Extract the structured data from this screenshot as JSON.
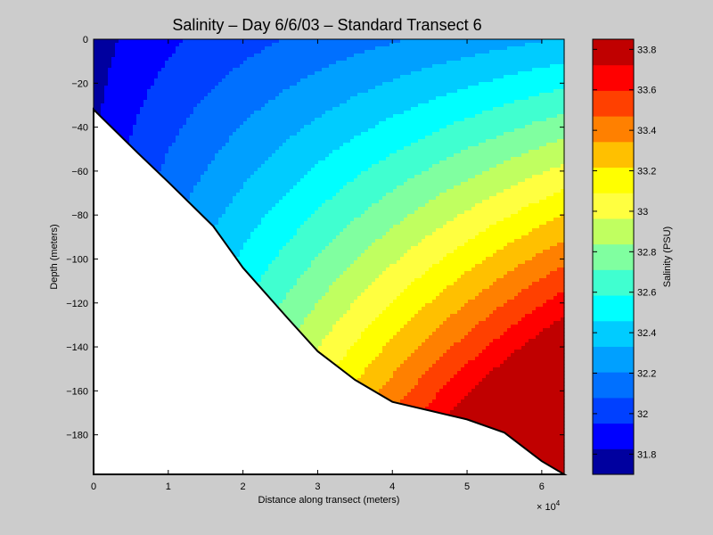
{
  "chart_data": {
    "type": "heatmap",
    "title": "Salinity – Day 6/6/03 – Standard Transect 6",
    "xlabel": "Distance along transect (meters)",
    "ylabel": "Depth (meters)",
    "x_multiplier_label": "× 10",
    "x_multiplier_exp": "4",
    "xlim": [
      0,
      63000
    ],
    "ylim": [
      -198,
      0
    ],
    "x_ticks": [
      {
        "value": 0,
        "label": "0"
      },
      {
        "value": 10000,
        "label": "1"
      },
      {
        "value": 20000,
        "label": "2"
      },
      {
        "value": 30000,
        "label": "3"
      },
      {
        "value": 40000,
        "label": "4"
      },
      {
        "value": 50000,
        "label": "5"
      },
      {
        "value": 60000,
        "label": "6"
      }
    ],
    "y_ticks": [
      {
        "value": 0,
        "label": "0"
      },
      {
        "value": -20,
        "label": "−20"
      },
      {
        "value": -40,
        "label": "−40"
      },
      {
        "value": -60,
        "label": "−60"
      },
      {
        "value": -80,
        "label": "−80"
      },
      {
        "value": -100,
        "label": "−100"
      },
      {
        "value": -120,
        "label": "−120"
      },
      {
        "value": -140,
        "label": "−140"
      },
      {
        "value": -160,
        "label": "−160"
      },
      {
        "value": -180,
        "label": "−180"
      }
    ],
    "colorbar": {
      "label": "Salinity (PSU)",
      "min": 31.7,
      "max": 33.85,
      "ticks": [
        {
          "value": 31.8,
          "label": "31.8"
        },
        {
          "value": 32.0,
          "label": "32"
        },
        {
          "value": 32.2,
          "label": "32.2"
        },
        {
          "value": 32.4,
          "label": "32.4"
        },
        {
          "value": 32.6,
          "label": "32.6"
        },
        {
          "value": 32.8,
          "label": "32.8"
        },
        {
          "value": 33.0,
          "label": "33"
        },
        {
          "value": 33.2,
          "label": "33.2"
        },
        {
          "value": 33.4,
          "label": "33.4"
        },
        {
          "value": 33.6,
          "label": "33.6"
        },
        {
          "value": 33.8,
          "label": "33.8"
        }
      ],
      "colors": [
        "#00009f",
        "#0000ff",
        "#0040ff",
        "#0070ff",
        "#00a0ff",
        "#00ccff",
        "#00ffff",
        "#40ffd0",
        "#80ffa0",
        "#c0ff60",
        "#ffff40",
        "#ffff00",
        "#ffc000",
        "#ff8000",
        "#ff4000",
        "#ff0000",
        "#c00000"
      ]
    },
    "bathymetry": {
      "x": [
        0,
        6000,
        10000,
        16000,
        20000,
        26000,
        30000,
        35000,
        40000,
        45000,
        50000,
        55000,
        60000,
        63000
      ],
      "depth": [
        -32,
        -52,
        -65,
        -85,
        -104,
        -127,
        -142,
        -155,
        -165,
        -169,
        -173,
        -179,
        -192,
        -198
      ]
    }
  }
}
